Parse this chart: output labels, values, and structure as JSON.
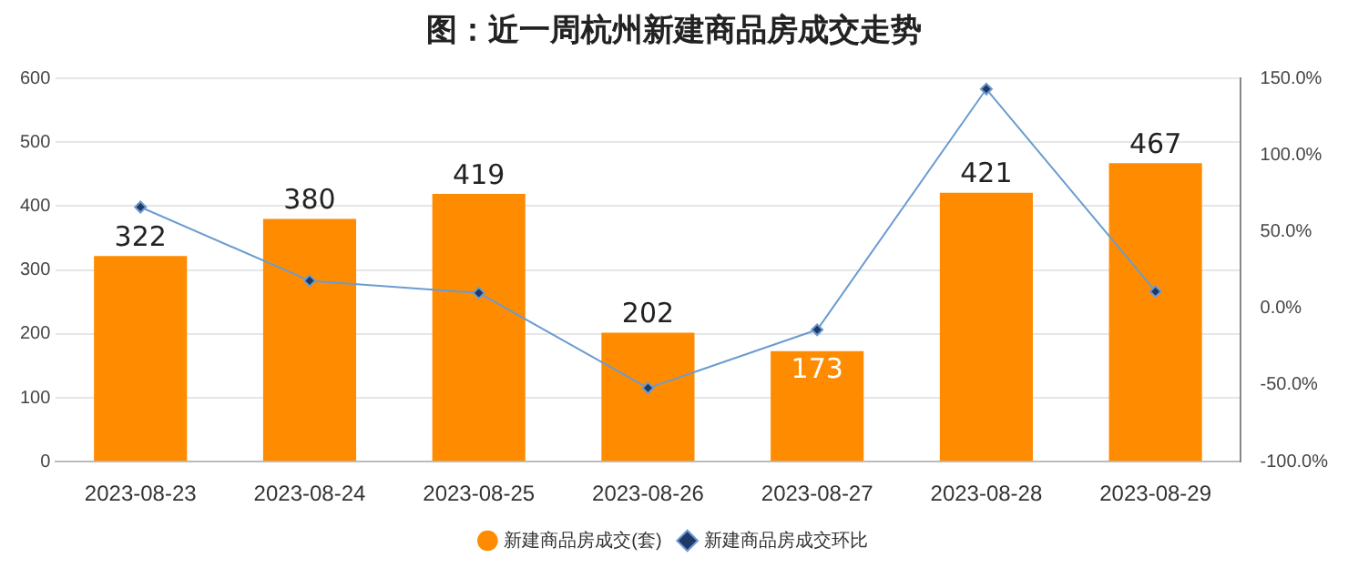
{
  "chart_data": {
    "type": "bar",
    "title": "图：近一周杭州新建商品房成交走势",
    "categories": [
      "2023-08-23",
      "2023-08-24",
      "2023-08-25",
      "2023-08-26",
      "2023-08-27",
      "2023-08-28",
      "2023-08-29"
    ],
    "series": [
      {
        "name": "新建商品房成交(套)",
        "color": "#ff8c00",
        "values": [
          322,
          380,
          419,
          202,
          173,
          421,
          467
        ],
        "value_labels": [
          "322",
          "380",
          "419",
          "202",
          "173",
          "421",
          "467"
        ]
      },
      {
        "name": "新建商品房成交环比",
        "type": "line",
        "axis": "y2",
        "color": "#6b9bd1",
        "values": [
          66,
          18,
          10,
          -52,
          -14,
          143,
          11
        ]
      }
    ],
    "ylim": [
      0,
      600
    ],
    "yticks": [
      0,
      100,
      200,
      300,
      400,
      500,
      600
    ],
    "y2lim": [
      -100,
      150
    ],
    "y2ticks": [
      {
        "value": -100,
        "label": "-100.0%"
      },
      {
        "value": -50,
        "label": "-50.0%"
      },
      {
        "value": 0,
        "label": "0.0%"
      },
      {
        "value": 50,
        "label": "50.0%"
      },
      {
        "value": 100,
        "label": "100.0%"
      },
      {
        "value": 150,
        "label": "150.0%"
      }
    ],
    "grid": "y",
    "legend": "bottom",
    "marker": "diamond"
  }
}
